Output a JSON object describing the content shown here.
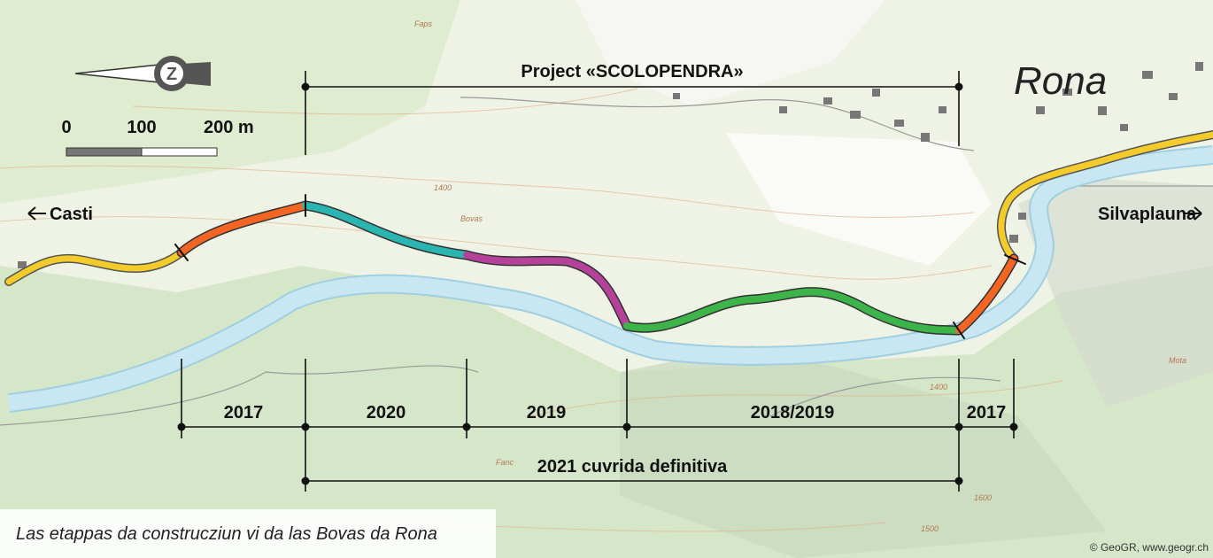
{
  "map": {
    "project_label": "Project «SCOLOPENDRA»",
    "town": "Rona",
    "scale": {
      "labels": [
        "0",
        "100",
        "200 m"
      ]
    },
    "directions": {
      "west": "Casti",
      "east": "Silvaplauna"
    },
    "stages": [
      "2017",
      "2020",
      "2019",
      "2018/2019",
      "2017"
    ],
    "final_stage": "2021 cuvrida definitiva",
    "place_names": [
      "Faps",
      "Bovas",
      "Fanc",
      "Mota"
    ],
    "contour_labels": [
      "1400",
      "1400",
      "1500",
      "1600"
    ],
    "caption": "Las etappas da construcziun vi da las Bovas da Rona",
    "copyright": "© GeoGR, www.geogr.ch"
  }
}
